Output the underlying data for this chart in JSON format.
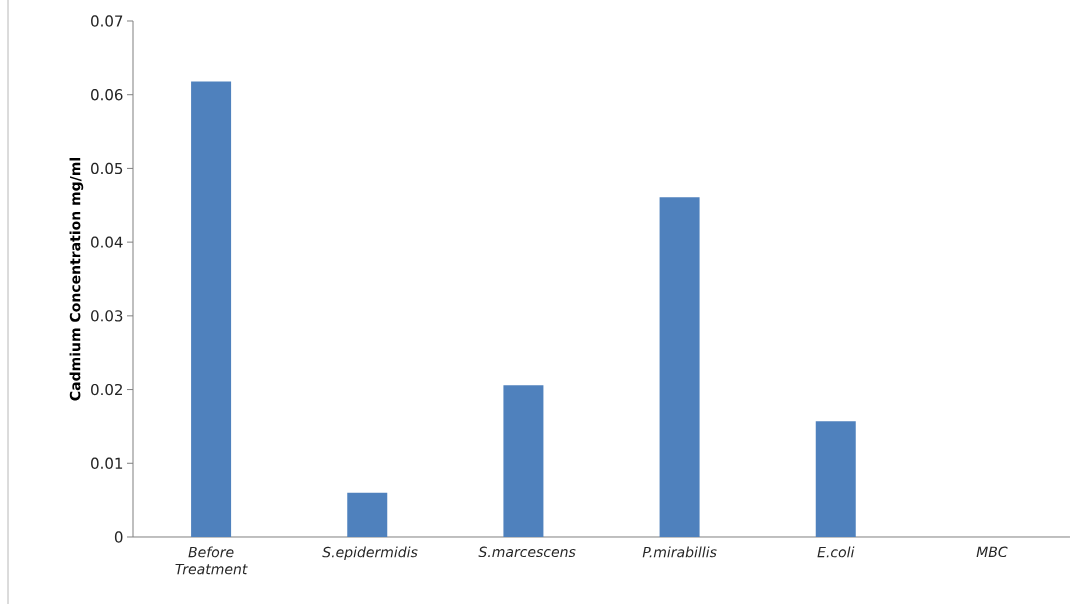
{
  "chart_data": {
    "type": "bar",
    "ylabel": "Cadmium Concentration mg/ml",
    "categories": [
      "Before Treatment",
      "S.epidermidis",
      "S.marcescens",
      "P.mirabillis",
      "E.coli",
      "MBC"
    ],
    "values": [
      0.0618,
      0.006,
      0.0206,
      0.0461,
      0.0157,
      0
    ],
    "color": "#4f81bd",
    "ylim": [
      0,
      0.07
    ],
    "yticks": [
      0,
      0.01,
      0.02,
      0.03,
      0.04,
      0.05,
      0.06,
      0.07
    ],
    "grid": false
  }
}
